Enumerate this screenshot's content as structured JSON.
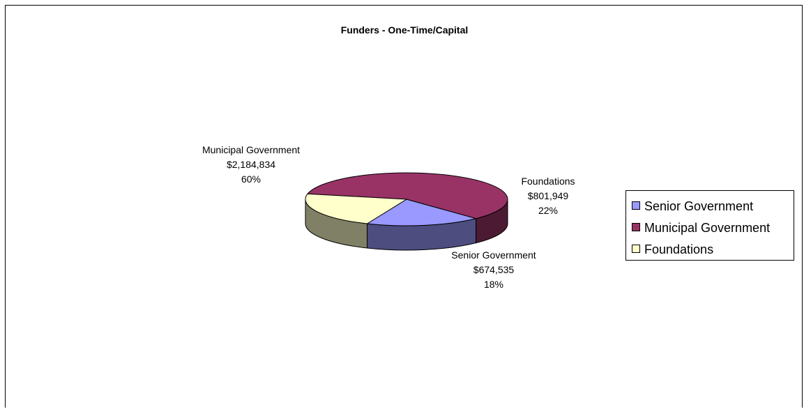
{
  "chart_data": {
    "type": "pie",
    "title": "Funders - One-Time/Capital",
    "slices": [
      {
        "name": "Senior Government",
        "value": 674535,
        "value_label": "$674,535",
        "percent_label": "18%",
        "color": "#9999ff",
        "side_color": "#4d4d80"
      },
      {
        "name": "Municipal Government",
        "value": 2184834,
        "value_label": "$2,184,834",
        "percent_label": "60%",
        "color": "#993366",
        "side_color": "#4d1a33"
      },
      {
        "name": "Foundations",
        "value": 801949,
        "value_label": "$801,949",
        "percent_label": "22%",
        "color": "#ffffcc",
        "side_color": "#808066"
      }
    ],
    "legend": {
      "placement": "right",
      "entries": [
        "Senior Government",
        "Municipal Government",
        "Foundations"
      ]
    },
    "style": "3d-pie"
  }
}
